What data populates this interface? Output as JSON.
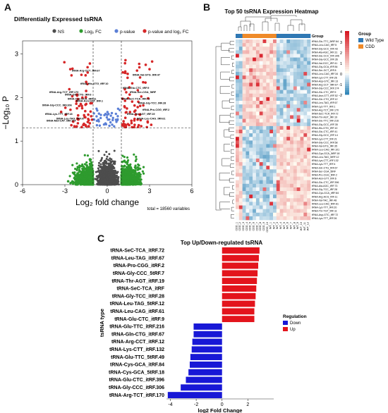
{
  "panels": {
    "a": "A",
    "b": "B",
    "c": "C"
  },
  "volcano": {
    "title": "Differentially Expressed tsRNA",
    "legend": [
      {
        "label": "NS",
        "color": "#4d4d4d"
      },
      {
        "label": "Log₂ FC",
        "color": "#2e9b2e"
      },
      {
        "label": "p-value",
        "color": "#5b7fd6"
      },
      {
        "label": "p-value and log₂ FC",
        "color": "#d62728"
      }
    ],
    "xlabel": "Log₂ fold change",
    "ylabel": "−Log₁₀ P",
    "xticks": [
      "-6",
      "-3",
      "0",
      "3",
      "6"
    ],
    "yticks": [
      "0",
      "1",
      "2",
      "3"
    ],
    "total": "total = 18560 variables",
    "labels": [
      "tRNA-Arg-CCT_tRF.67",
      "tRNA-Val-GTG_tRF.47",
      "tRNA-Arg-TCT_tRF.170",
      "tRNA-His-GTG_tRF.10",
      "tRNA-Gln-CTG_tRF.6",
      "tRNA-Cys-GCA_tRF.11",
      "tRNA-Asn-GTT_tRF.1",
      "tRNA-Ser-CGA_5tRF",
      "tRNA-Gly-CCC_tRF.306",
      "tRNA-Lys-TTT_tRF.18",
      "tRNA-Leu-TAG_tRF.67",
      "tRNA-Glu-CTC_tRF.9",
      "tRNA-Gly-TCC_tRF.28",
      "tRNA-SeC-TCA_tRF.72",
      "tRNA-Met-CAT_tRF.174",
      "tRNA-Pro-CGG_tRF.2",
      "tRNA-Thr-AGT_tRF.19",
      "tRNA-Leu-CAG_tRF.61"
    ]
  },
  "heatmap": {
    "title": "Top 50 tsRNA Expression Heatmap",
    "legend_title": "Group",
    "groups": [
      {
        "label": "Wild Type",
        "color": "#2f78b4"
      },
      {
        "label": "CDD",
        "color": "#ef8a29"
      }
    ],
    "scale": [
      "4",
      "3",
      "2",
      "1",
      "0",
      "-1",
      "-2"
    ],
    "rows": [
      "tRNA-Glu-TTC_5tRF.64",
      "tRNA-Leu-CAG_tRF.5",
      "tRNA-Gly-GCC_tRF.43",
      "tRNA-Ala-AGC_tRF.31",
      "tRNA-Glu-CCC_tRF.306",
      "tRNA-Gly-GCC_tRF.36",
      "tRNA-Val-GCC_tRF.41",
      "tRNA-Gly-GCA_tRF.84",
      "tRNA-Ser-GCT_tRF.8",
      "tRNA-Leu-CAG_tRF.34",
      "tRNA-Lys-CTT_tRF.26",
      "tRNA-Asp-GTC_tRF.13",
      "tRNA-Arg-CCT_itRF.67",
      "tRNA-Gly-CCC_tRF.174",
      "tRNA-Glu-CTC_tRF.9",
      "tRNA-Asn-GTT_tRF.52",
      "tRNA-Gln-CTG_tRF.12",
      "tRNA-Leu-TAG_tRF.67",
      "tRNA-Lys-TTT_tRF.1",
      "tRNA-Arg-TCT_tRF.170",
      "tRNA-SeC-TCA_tRF.72",
      "tRNA-Thr-AGT_tRF.19",
      "tRNA-Glu-TTC_tRF.216",
      "tRNA-Gly-GCC_tRF.35",
      "tRNA-His-GTG_tRF.10",
      "tRNA-Glu-CTC_tRF.41",
      "tRNA-Gly-GCC_tRF.14",
      "tRNA-Lys-CTT_tRF.21",
      "tRNA-Gly-CCC_tRF.58",
      "tRNA-Val-GTG_tRF.35",
      "tRNA-Leu-CAG_tRF.101",
      "tRNA-Cys-GCA_5tRF.18",
      "tRNA-Leu-TAG_5tRF.12",
      "tRNA-Lys-CTT_tRF.132",
      "tRNA-Lys-TTT_tRF.4",
      "tRNA-Gln-CTG_tRF.67",
      "tRNA-Ser-CGA_5tRF",
      "tRNA-Pro-CGG_itRF.2",
      "tRNA-Asn-GTT_tRF.6",
      "tRNA-Glu-CTC_tRF.396",
      "tRNA-Ala-AGC_tRF.73",
      "tRNA-Gly-TCC_tRF.28",
      "tRNA-Cys-GCA_itRF.84",
      "tRNA-Arg-ACG_tRF.11",
      "tRNA-Val-TAC_tRF.48",
      "tRNA-Leu-CAG_itRF.61",
      "tRNA-Lys-TTT_tRF.20",
      "tRNA-Thr-TGT_tRF.11",
      "tRNA-Asp-GTC_tRF.72",
      "tRNA-Lys-TTT_tRF.26"
    ],
    "cols": [
      "CDD_1",
      "CDD_2",
      "CDD_3",
      "CDD_4",
      "CDD_5",
      "CDD_6",
      "CDD_7",
      "CDD_8",
      "CDD_9",
      "CDD_10",
      "WT_1",
      "WT_2",
      "WT_3",
      "WT_4",
      "WT_5",
      "WT_6",
      "WT_7",
      "WT_8",
      "WT_9",
      "WT_10",
      "WT_11",
      "WT_12"
    ]
  },
  "chart_data": {
    "type": "bar",
    "title": "Top Up/Down-regulated tsRNA",
    "xlabel": "log2 Fold Change",
    "ylabel": "tsRNA type",
    "xlim": [
      -4.3,
      4
    ],
    "xticks": [
      -4,
      -2,
      0,
      2
    ],
    "legend_title": "Regulation",
    "legend": [
      {
        "label": "Down",
        "color": "#1818d6"
      },
      {
        "label": "Up",
        "color": "#e3141c"
      }
    ],
    "legend_position": "right",
    "categories": [
      "tRNA-SeC-TCA_itRF.72",
      "tRNA-Leu-TAG_itRF.67",
      "tRNA-Pro-CGG_itRF.2",
      "tRNA-Gly-CCC_5tRF.7",
      "tRNA-Thr-AGT_itRF.19",
      "tRNA-SeC-TCA_itRF",
      "tRNA-Gly-TCC_itRF.28",
      "tRNA-Leu-TAG_5tRF.12",
      "tRNA-Leu-CAG_itRF.61",
      "tRNA-Glu-CTC_itRF.9",
      "tRNA-Glu-TTC_itRF.216",
      "tRNA-Gln-CTG_itRF.67",
      "tRNA-Arg-CCT_itRF.12",
      "tRNA-Lys-CTT_itRF.132",
      "tRNA-Glu-TTC_5tRF.49",
      "tRNA-Cys-GCA_itRF.84",
      "tRNA-Cys-GCA_5tRF.18",
      "tRNA-Glu-CTC_itRF.396",
      "tRNA-Gly-CCC_itRF.306",
      "tRNA-Arg-TCT_itRF.170"
    ],
    "values": [
      2.9,
      2.85,
      2.8,
      2.75,
      2.7,
      2.65,
      2.6,
      2.55,
      2.5,
      2.5,
      -2.2,
      -2.2,
      -2.3,
      -2.35,
      -2.45,
      -2.5,
      -2.6,
      -2.8,
      -3.2,
      -4.2
    ]
  }
}
